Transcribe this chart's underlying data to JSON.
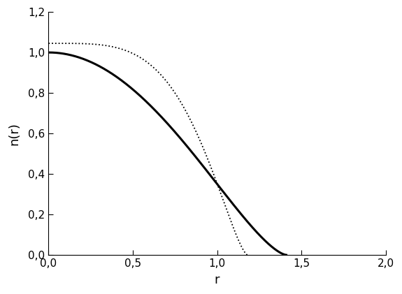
{
  "title": "",
  "xlabel": "r",
  "ylabel": "n(r)",
  "xlim": [
    0.0,
    2.0
  ],
  "ylim": [
    0.0,
    1.2
  ],
  "xticks": [
    0.0,
    0.5,
    1.0,
    1.5,
    2.0
  ],
  "yticks": [
    0.0,
    0.2,
    0.4,
    0.6,
    0.8,
    1.0,
    1.2
  ],
  "xtick_labels": [
    "0,0",
    "0,5",
    "1,0",
    "1,5",
    "2,0"
  ],
  "ytick_labels": [
    "0,0",
    "0,2",
    "0,4",
    "0,6",
    "0,8",
    "1,0",
    "1,2"
  ],
  "solid_R": 1.41,
  "dotted_R": 1.18,
  "dotted_peak": 1.045,
  "background_color": "#ffffff",
  "line_color": "#000000",
  "figsize": [
    5.75,
    4.21
  ],
  "dpi": 100
}
